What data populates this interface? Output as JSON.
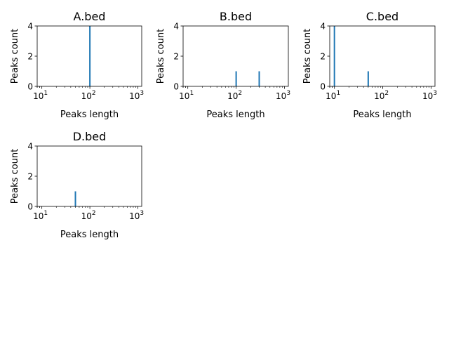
{
  "figure": {
    "background": "#ffffff"
  },
  "bar_color": "#1f77b4",
  "chart_data": [
    {
      "type": "bar",
      "title": "A.bed",
      "xlabel": "Peaks length",
      "ylabel": "Peaks count",
      "xscale": "log",
      "xlim": [
        8,
        1200
      ],
      "ylim": [
        0,
        4
      ],
      "xticks": [
        {
          "base": "10",
          "exp": "1",
          "value": 10
        },
        {
          "base": "10",
          "exp": "2",
          "value": 100
        },
        {
          "base": "10",
          "exp": "3",
          "value": 1000
        }
      ],
      "yticks": [
        0,
        2,
        4
      ],
      "bars": [
        {
          "x": 100,
          "count": 4
        }
      ]
    },
    {
      "type": "bar",
      "title": "B.bed",
      "xlabel": "Peaks length",
      "ylabel": "Peaks count",
      "xscale": "log",
      "xlim": [
        8,
        1200
      ],
      "ylim": [
        0,
        4
      ],
      "xticks": [
        {
          "base": "10",
          "exp": "1",
          "value": 10
        },
        {
          "base": "10",
          "exp": "2",
          "value": 100
        },
        {
          "base": "10",
          "exp": "3",
          "value": 1000
        }
      ],
      "yticks": [
        0,
        2,
        4
      ],
      "bars": [
        {
          "x": 100,
          "count": 1
        },
        {
          "x": 300,
          "count": 1
        }
      ]
    },
    {
      "type": "bar",
      "title": "C.bed",
      "xlabel": "Peaks length",
      "ylabel": "Peaks count",
      "xscale": "log",
      "xlim": [
        8,
        1200
      ],
      "ylim": [
        0,
        4
      ],
      "xticks": [
        {
          "base": "10",
          "exp": "1",
          "value": 10
        },
        {
          "base": "10",
          "exp": "2",
          "value": 100
        },
        {
          "base": "10",
          "exp": "3",
          "value": 1000
        }
      ],
      "yticks": [
        0,
        2,
        4
      ],
      "bars": [
        {
          "x": 10,
          "count": 4
        },
        {
          "x": 50,
          "count": 1
        }
      ]
    },
    {
      "type": "bar",
      "title": "D.bed",
      "xlabel": "Peaks length",
      "ylabel": "Peaks count",
      "xscale": "log",
      "xlim": [
        8,
        1200
      ],
      "ylim": [
        0,
        4
      ],
      "xticks": [
        {
          "base": "10",
          "exp": "1",
          "value": 10
        },
        {
          "base": "10",
          "exp": "2",
          "value": 100
        },
        {
          "base": "10",
          "exp": "3",
          "value": 1000
        }
      ],
      "yticks": [
        0,
        2,
        4
      ],
      "bars": [
        {
          "x": 50,
          "count": 1
        }
      ]
    }
  ]
}
